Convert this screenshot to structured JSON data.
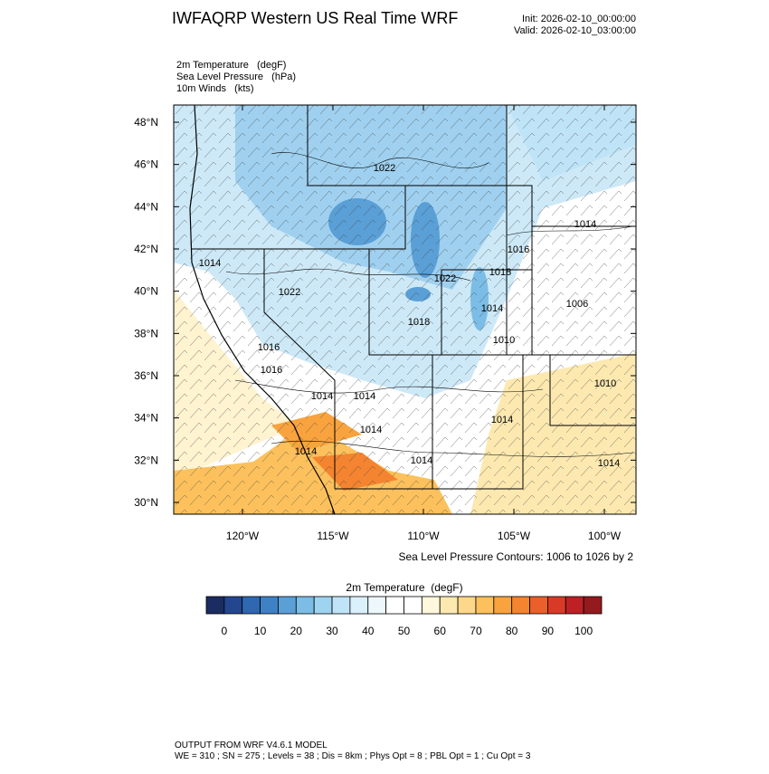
{
  "header": {
    "title": "IWFAQRP Western US Real Time WRF",
    "init": "Init: 2026-02-10_00:00:00",
    "valid": "Valid: 2026-02-10_03:00:00"
  },
  "fields": [
    "2m Temperature   (degF)",
    "Sea Level Pressure   (hPa)",
    "10m Winds   (kts)"
  ],
  "map": {
    "lat_ticks": [
      {
        "value": 30,
        "label": "30°N"
      },
      {
        "value": 32,
        "label": "32°N"
      },
      {
        "value": 34,
        "label": "34°N"
      },
      {
        "value": 36,
        "label": "36°N"
      },
      {
        "value": 38,
        "label": "38°N"
      },
      {
        "value": 40,
        "label": "40°N"
      },
      {
        "value": 42,
        "label": "42°N"
      },
      {
        "value": 44,
        "label": "44°N"
      },
      {
        "value": 46,
        "label": "46°N"
      },
      {
        "value": 48,
        "label": "48°N"
      }
    ],
    "lon_ticks": [
      {
        "value": -120,
        "label": "120°W"
      },
      {
        "value": -115,
        "label": "115°W"
      },
      {
        "value": -110,
        "label": "110°W"
      },
      {
        "value": -105,
        "label": "105°W"
      },
      {
        "value": -100,
        "label": "100°W"
      }
    ],
    "contour_labels": [
      "1022",
      "1014",
      "1016",
      "1014",
      "1022",
      "1018",
      "1022",
      "1006",
      "1014",
      "1018",
      "1010",
      "1016",
      "1016",
      "1010",
      "1014",
      "1014",
      "1014",
      "1014",
      "1014",
      "1014",
      "1014"
    ],
    "contour_note": "Sea Level Pressure Contours: 1006 to 1026 by 2"
  },
  "colorbar": {
    "title": "2m Temperature  (degF)",
    "labels": [
      0,
      10,
      20,
      30,
      40,
      50,
      60,
      70,
      80,
      90,
      100
    ],
    "colors": [
      "#1b2c62",
      "#23468f",
      "#2f67b1",
      "#3f81c4",
      "#5a9fd6",
      "#7bbde6",
      "#9fd4f1",
      "#bfe4f7",
      "#daf0fa",
      "#eef8fc",
      "#ffffff",
      "#ffffff",
      "#fff8dc",
      "#fde9b0",
      "#fdd88a",
      "#fcc15c",
      "#f9a33f",
      "#f4842f",
      "#ea5f2a",
      "#d93a27",
      "#bd2025",
      "#931a1d"
    ]
  },
  "footer": [
    "OUTPUT FROM WRF V4.6.1 MODEL",
    "WE = 310 ; SN = 275 ; Levels = 38 ; Dis = 8km ; Phys Opt = 8 ; PBL Opt = 1 ; Cu Opt = 3"
  ]
}
